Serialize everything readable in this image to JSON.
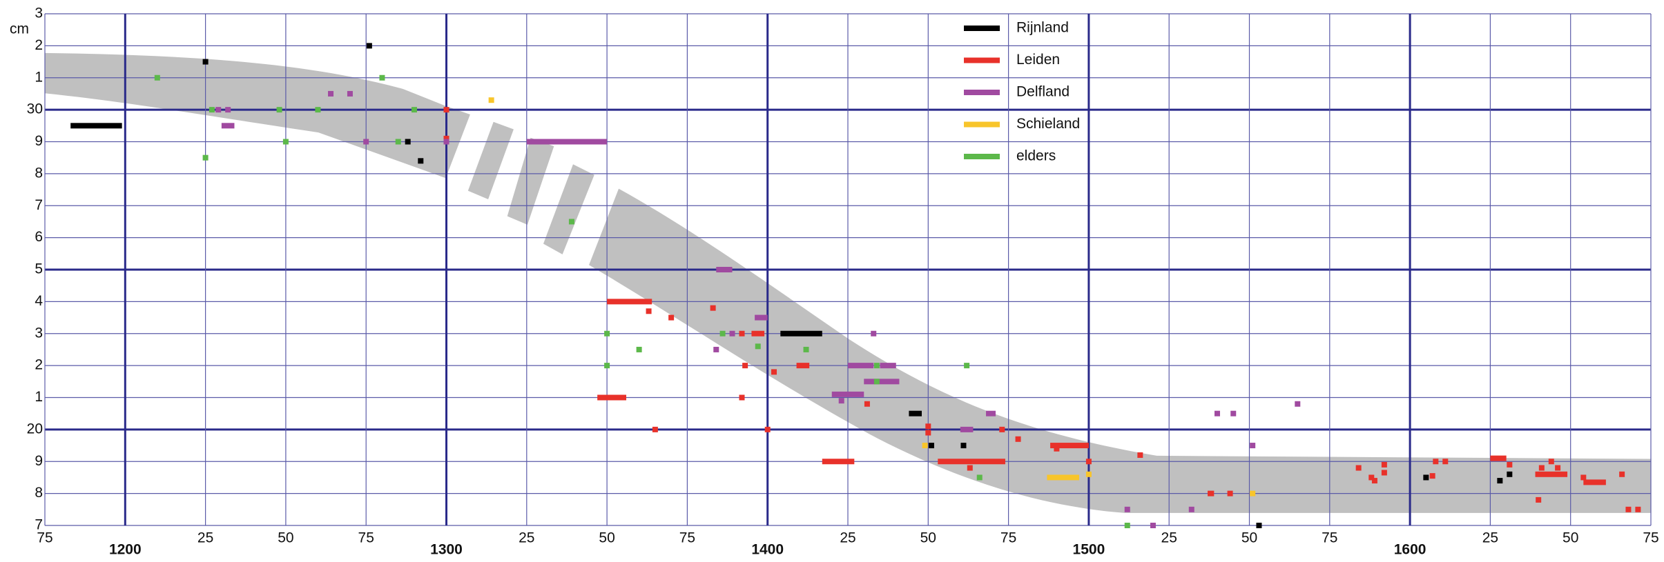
{
  "chart_data": {
    "type": "scatter",
    "y_label": "cm",
    "xlim": [
      1175,
      1675
    ],
    "ylim": [
      17,
      33
    ],
    "xticks": [
      {
        "value": 1175,
        "label": "75"
      },
      1200,
      {
        "value": 1225,
        "label": "25"
      },
      {
        "value": 1250,
        "label": "50"
      },
      {
        "value": 1275,
        "label": "75"
      },
      1300,
      {
        "value": 1325,
        "label": "25"
      },
      {
        "value": 1350,
        "label": "50"
      },
      {
        "value": 1375,
        "label": "75"
      },
      1400,
      {
        "value": 1425,
        "label": "25"
      },
      {
        "value": 1450,
        "label": "50"
      },
      {
        "value": 1475,
        "label": "75"
      },
      1500,
      {
        "value": 1525,
        "label": "25"
      },
      {
        "value": 1550,
        "label": "50"
      },
      {
        "value": 1575,
        "label": "75"
      },
      1600,
      {
        "value": 1625,
        "label": "25"
      },
      {
        "value": 1650,
        "label": "50"
      },
      {
        "value": 1675,
        "label": "75"
      }
    ],
    "yticks": [
      {
        "value": 17,
        "label": "7"
      },
      {
        "value": 18,
        "label": "8"
      },
      {
        "value": 19,
        "label": "9"
      },
      20,
      {
        "value": 21,
        "label": "1"
      },
      {
        "value": 22,
        "label": "2"
      },
      {
        "value": 23,
        "label": "3"
      },
      {
        "value": 24,
        "label": "4"
      },
      {
        "value": 25,
        "label": "5"
      },
      {
        "value": 26,
        "label": "6"
      },
      {
        "value": 27,
        "label": "7"
      },
      {
        "value": 28,
        "label": "8"
      },
      {
        "value": 29,
        "label": "9"
      },
      30,
      {
        "value": 31,
        "label": "1"
      },
      {
        "value": 32,
        "label": "2"
      },
      {
        "value": 33,
        "label": "3"
      }
    ],
    "grid": true,
    "legend": "top-right",
    "series": [
      {
        "name": "Rijnland",
        "color": "#000000",
        "x": [
          1183,
          1225,
          1276,
          1288,
          1292,
          1404,
          1444,
          1451,
          1461,
          1553,
          1605,
          1628,
          1631
        ],
        "x_end": [
          1199,
          1225,
          1276,
          1288,
          1292,
          1417,
          1448,
          1451,
          1461,
          1553,
          1605,
          1628,
          1631
        ],
        "values": [
          29.5,
          31.5,
          32,
          29,
          28.4,
          23,
          20.5,
          19.5,
          19.5,
          17,
          18.5,
          18.4,
          18.6
        ]
      },
      {
        "name": "Leiden",
        "color": "#e8312a",
        "x": [
          1300,
          1300,
          1350,
          1363,
          1370,
          1347,
          1365,
          1383,
          1392,
          1395,
          1393,
          1392,
          1400,
          1402,
          1409,
          1417,
          1431,
          1450,
          1450,
          1453,
          1463,
          1473,
          1478,
          1490,
          1488,
          1500,
          1516,
          1537,
          1544,
          1584,
          1588,
          1589,
          1592,
          1592,
          1608,
          1611,
          1607,
          1625,
          1631,
          1640,
          1641,
          1639,
          1644,
          1646,
          1654,
          1654,
          1666,
          1668,
          1671
        ],
        "x_end": [
          1300,
          1300,
          1364,
          1363,
          1370,
          1356,
          1365,
          1383,
          1392,
          1399,
          1393,
          1392,
          1400,
          1402,
          1413,
          1427,
          1431,
          1450,
          1450,
          1474,
          1463,
          1473,
          1478,
          1490,
          1500,
          1500,
          1516,
          1539,
          1544,
          1584,
          1588,
          1589,
          1592,
          1592,
          1608,
          1611,
          1607,
          1630,
          1631,
          1640,
          1641,
          1649,
          1644,
          1646,
          1654,
          1661,
          1666,
          1668,
          1671
        ],
        "values": [
          30,
          29.1,
          24,
          23.7,
          23.5,
          21,
          20,
          23.8,
          23,
          23,
          22,
          21,
          20,
          21.8,
          22,
          19,
          20.8,
          20.1,
          19.9,
          19,
          18.8,
          20,
          19.7,
          19.4,
          19.5,
          19,
          19.2,
          18,
          18,
          18.8,
          18.5,
          18.4,
          18.9,
          18.65,
          19,
          19,
          18.55,
          19.1,
          18.9,
          17.8,
          18.8,
          18.6,
          19,
          18.8,
          18.5,
          18.35,
          18.6,
          17.5,
          17.5
        ]
      },
      {
        "name": "Delfland",
        "color": "#a04aa0",
        "x": [
          1229,
          1232,
          1230,
          1264,
          1270,
          1275,
          1300,
          1325,
          1384,
          1396,
          1389,
          1384,
          1433,
          1425,
          1435,
          1420,
          1423,
          1430,
          1468,
          1460,
          1512,
          1520,
          1532,
          1540,
          1545,
          1551,
          1565
        ],
        "x_end": [
          1229,
          1232,
          1234,
          1264,
          1270,
          1275,
          1300,
          1350,
          1389,
          1400,
          1389,
          1384,
          1433,
          1433,
          1440,
          1430,
          1423,
          1441,
          1471,
          1464,
          1512,
          1520,
          1532,
          1540,
          1545,
          1551,
          1565
        ],
        "values": [
          30,
          30,
          29.5,
          30.5,
          30.5,
          29,
          29,
          29,
          25,
          23.5,
          23,
          22.5,
          23,
          22,
          22,
          21.1,
          20.9,
          21.5,
          20.5,
          20,
          17.5,
          17,
          17.5,
          20.5,
          20.5,
          19.5,
          20.8
        ]
      },
      {
        "name": "Schieland",
        "color": "#f8c52b",
        "x": [
          1314,
          1449,
          1487,
          1500,
          1551
        ],
        "x_end": [
          1314,
          1449,
          1497,
          1500,
          1551
        ],
        "values": [
          30.3,
          19.5,
          18.5,
          18.6,
          18
        ]
      },
      {
        "name": "elders",
        "color": "#5cb84a",
        "x": [
          1210,
          1225,
          1227,
          1248,
          1250,
          1260,
          1280,
          1285,
          1290,
          1339,
          1350,
          1350,
          1360,
          1386,
          1397,
          1412,
          1434,
          1434,
          1462,
          1466,
          1512
        ],
        "x_end": [
          1210,
          1225,
          1227,
          1248,
          1250,
          1260,
          1280,
          1285,
          1290,
          1339,
          1350,
          1350,
          1360,
          1386,
          1397,
          1412,
          1434,
          1434,
          1462,
          1466,
          1512
        ],
        "values": [
          31,
          28.5,
          30,
          30,
          29,
          30,
          31,
          29,
          30,
          26.5,
          23,
          22,
          22.5,
          23,
          22.6,
          22.5,
          22,
          21.5,
          22,
          18.5,
          17
        ]
      }
    ]
  }
}
